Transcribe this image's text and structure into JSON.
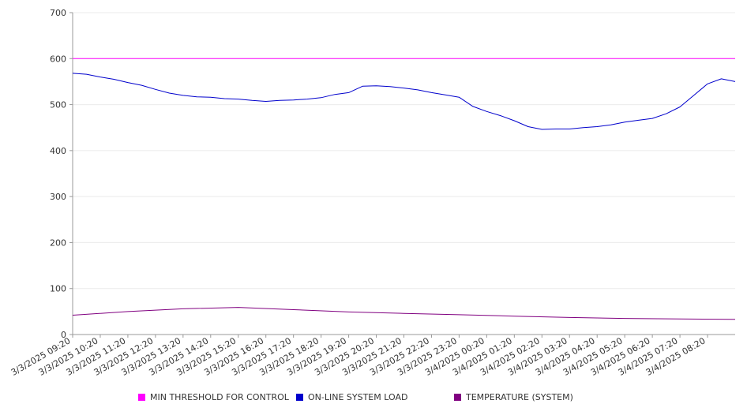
{
  "chart_data": {
    "type": "line",
    "x_tick_labels": [
      "3/3/2025 09:20",
      "3/3/2025 10:20",
      "3/3/2025 11:20",
      "3/3/2025 12:20",
      "3/3/2025 13:20",
      "3/3/2025 14:20",
      "3/3/2025 15:20",
      "3/3/2025 16:20",
      "3/3/2025 17:20",
      "3/3/2025 18:20",
      "3/3/2025 19:20",
      "3/3/2025 20:20",
      "3/3/2025 21:20",
      "3/3/2025 22:20",
      "3/3/2025 23:20",
      "3/4/2025 00:20",
      "3/4/2025 01:20",
      "3/4/2025 02:20",
      "3/4/2025 03:20",
      "3/4/2025 04:20",
      "3/4/2025 05:20",
      "3/4/2025 06:20",
      "3/4/2025 07:20",
      "3/4/2025 08:20"
    ],
    "y_ticks": [
      0,
      100,
      200,
      300,
      400,
      500,
      600,
      700
    ],
    "ylim": [
      0,
      700
    ],
    "grid": true,
    "legend_position": "bottom",
    "series": [
      {
        "name": "MIN THRESHOLD FOR CONTROL",
        "color": "#ff00ff",
        "x": [
          "3/3/2025 09:20",
          "3/4/2025 09:20"
        ],
        "y": [
          600,
          600
        ]
      },
      {
        "name": "ON-LINE SYSTEM LOAD",
        "color": "#0000cc",
        "x": [
          "3/3/2025 09:20",
          "3/3/2025 09:50",
          "3/3/2025 10:20",
          "3/3/2025 10:50",
          "3/3/2025 11:20",
          "3/3/2025 11:50",
          "3/3/2025 12:20",
          "3/3/2025 12:50",
          "3/3/2025 13:20",
          "3/3/2025 13:50",
          "3/3/2025 14:20",
          "3/3/2025 14:50",
          "3/3/2025 15:20",
          "3/3/2025 15:50",
          "3/3/2025 16:20",
          "3/3/2025 16:50",
          "3/3/2025 17:20",
          "3/3/2025 17:50",
          "3/3/2025 18:20",
          "3/3/2025 18:50",
          "3/3/2025 19:20",
          "3/3/2025 19:50",
          "3/3/2025 20:20",
          "3/3/2025 20:50",
          "3/3/2025 21:20",
          "3/3/2025 21:50",
          "3/3/2025 22:20",
          "3/3/2025 22:50",
          "3/3/2025 23:20",
          "3/3/2025 23:50",
          "3/4/2025 00:20",
          "3/4/2025 00:50",
          "3/4/2025 01:20",
          "3/4/2025 01:50",
          "3/4/2025 02:20",
          "3/4/2025 02:50",
          "3/4/2025 03:20",
          "3/4/2025 03:50",
          "3/4/2025 04:20",
          "3/4/2025 04:50",
          "3/4/2025 05:20",
          "3/4/2025 05:50",
          "3/4/2025 06:20",
          "3/4/2025 06:50",
          "3/4/2025 07:20",
          "3/4/2025 07:50",
          "3/4/2025 08:20",
          "3/4/2025 08:50",
          "3/4/2025 09:20"
        ],
        "y": [
          568,
          566,
          560,
          555,
          548,
          542,
          533,
          525,
          520,
          517,
          516,
          513,
          512,
          509,
          507,
          509,
          510,
          512,
          515,
          522,
          526,
          540,
          541,
          539,
          536,
          532,
          526,
          521,
          516,
          496,
          485,
          476,
          465,
          452,
          446,
          447,
          447,
          450,
          452,
          456,
          462,
          466,
          470,
          480,
          495,
          520,
          545,
          556,
          550
        ]
      },
      {
        "name": "TEMPERATURE (SYSTEM)",
        "color": "#800080",
        "x": [
          "3/3/2025 09:20",
          "3/3/2025 11:20",
          "3/3/2025 13:20",
          "3/3/2025 15:20",
          "3/3/2025 17:20",
          "3/3/2025 19:20",
          "3/3/2025 21:20",
          "3/3/2025 23:20",
          "3/4/2025 01:20",
          "3/4/2025 03:20",
          "3/4/2025 05:20",
          "3/4/2025 07:20",
          "3/4/2025 09:20"
        ],
        "y": [
          42,
          50,
          56,
          59,
          54,
          49,
          46,
          43,
          40,
          37,
          35,
          34,
          33
        ]
      }
    ]
  }
}
